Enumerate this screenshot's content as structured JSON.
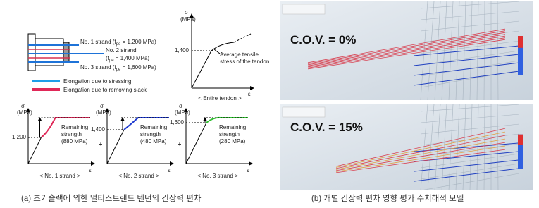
{
  "left": {
    "strands": [
      {
        "line1": "No. 1 strand (f",
        "sub": "pe",
        "tail": " = 1,200 MPa)"
      },
      {
        "line1": "No. 2 strand",
        "line2": "(f",
        "sub": "pe",
        "tail": " = 1,400 MPa)"
      },
      {
        "line1": "No. 3 strand (f",
        "sub": "pe",
        "tail": " = 1,600 MPa)"
      }
    ],
    "legend": [
      "Elongation due to stressing",
      "Elongation due to removing slack"
    ],
    "tendon_graph": {
      "y_symbol": "σ",
      "y_unit": "(MPa)",
      "tick": "1,400",
      "x_symbol": "ε",
      "note": [
        "Average tensile",
        "stress of the tendon"
      ],
      "caption": "< Entire tendon >"
    },
    "strand_graphs": [
      {
        "y_symbol": "σ",
        "y_unit": "(MPa)",
        "x_symbol": "ε",
        "tick": "1,200",
        "note": [
          "Remaining",
          "strength",
          "(880 MPa)"
        ],
        "caption": "< No. 1 strand >"
      },
      {
        "y_symbol": "σ",
        "y_unit": "(MPa)",
        "x_symbol": "ε",
        "tick": "1,400",
        "note": [
          "Remaining",
          "strength",
          "(480 MPa)"
        ],
        "caption": "< No. 2 strand >"
      },
      {
        "y_symbol": "σ",
        "y_unit": "(MPa)",
        "x_symbol": "ε",
        "tick": "1,600",
        "note": [
          "Remaining",
          "strength",
          "(280 MPa)"
        ],
        "caption": "< No. 3 strand >"
      }
    ],
    "plus": [
      "+",
      "+"
    ],
    "caption": "(a) 초기슬랙에 의한 멀티스트랜드 텐던의 긴장력 편차"
  },
  "right": {
    "panels": [
      {
        "label": "C.O.V. = 0%"
      },
      {
        "label": "C.O.V. = 15%"
      }
    ],
    "caption": "(b) 개별 긴장력 편차 영향 평가 수치해석 모델"
  }
}
